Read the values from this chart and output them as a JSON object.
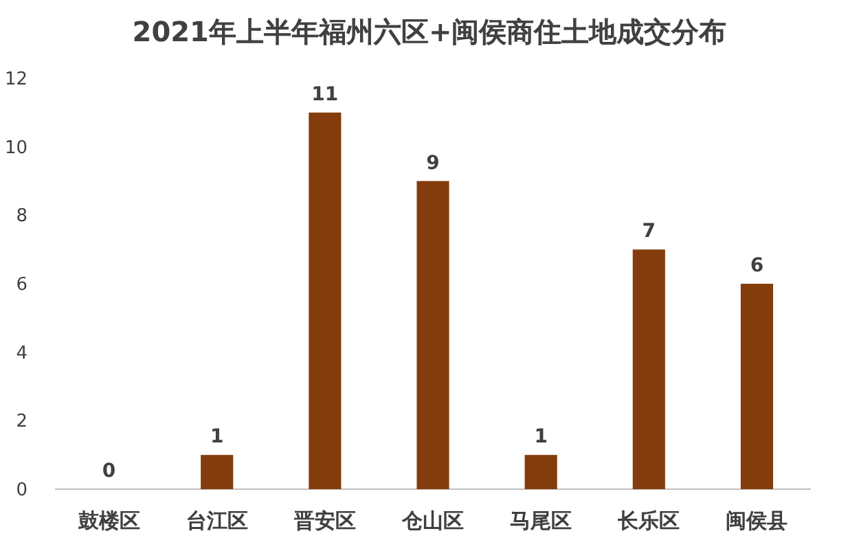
{
  "chart_data": {
    "type": "bar",
    "title": "2021年上半年福州六区+闽侯商住土地成交分布",
    "categories": [
      "鼓楼区",
      "台江区",
      "晋安区",
      "仓山区",
      "马尾区",
      "长乐区",
      "闽侯县"
    ],
    "values": [
      0,
      1,
      11,
      9,
      1,
      7,
      6
    ],
    "color": "#843c0c",
    "ylim": [
      0,
      12
    ],
    "yticks": [
      0,
      2,
      4,
      6,
      8,
      10,
      12
    ],
    "grid": false,
    "data_labels": true
  }
}
